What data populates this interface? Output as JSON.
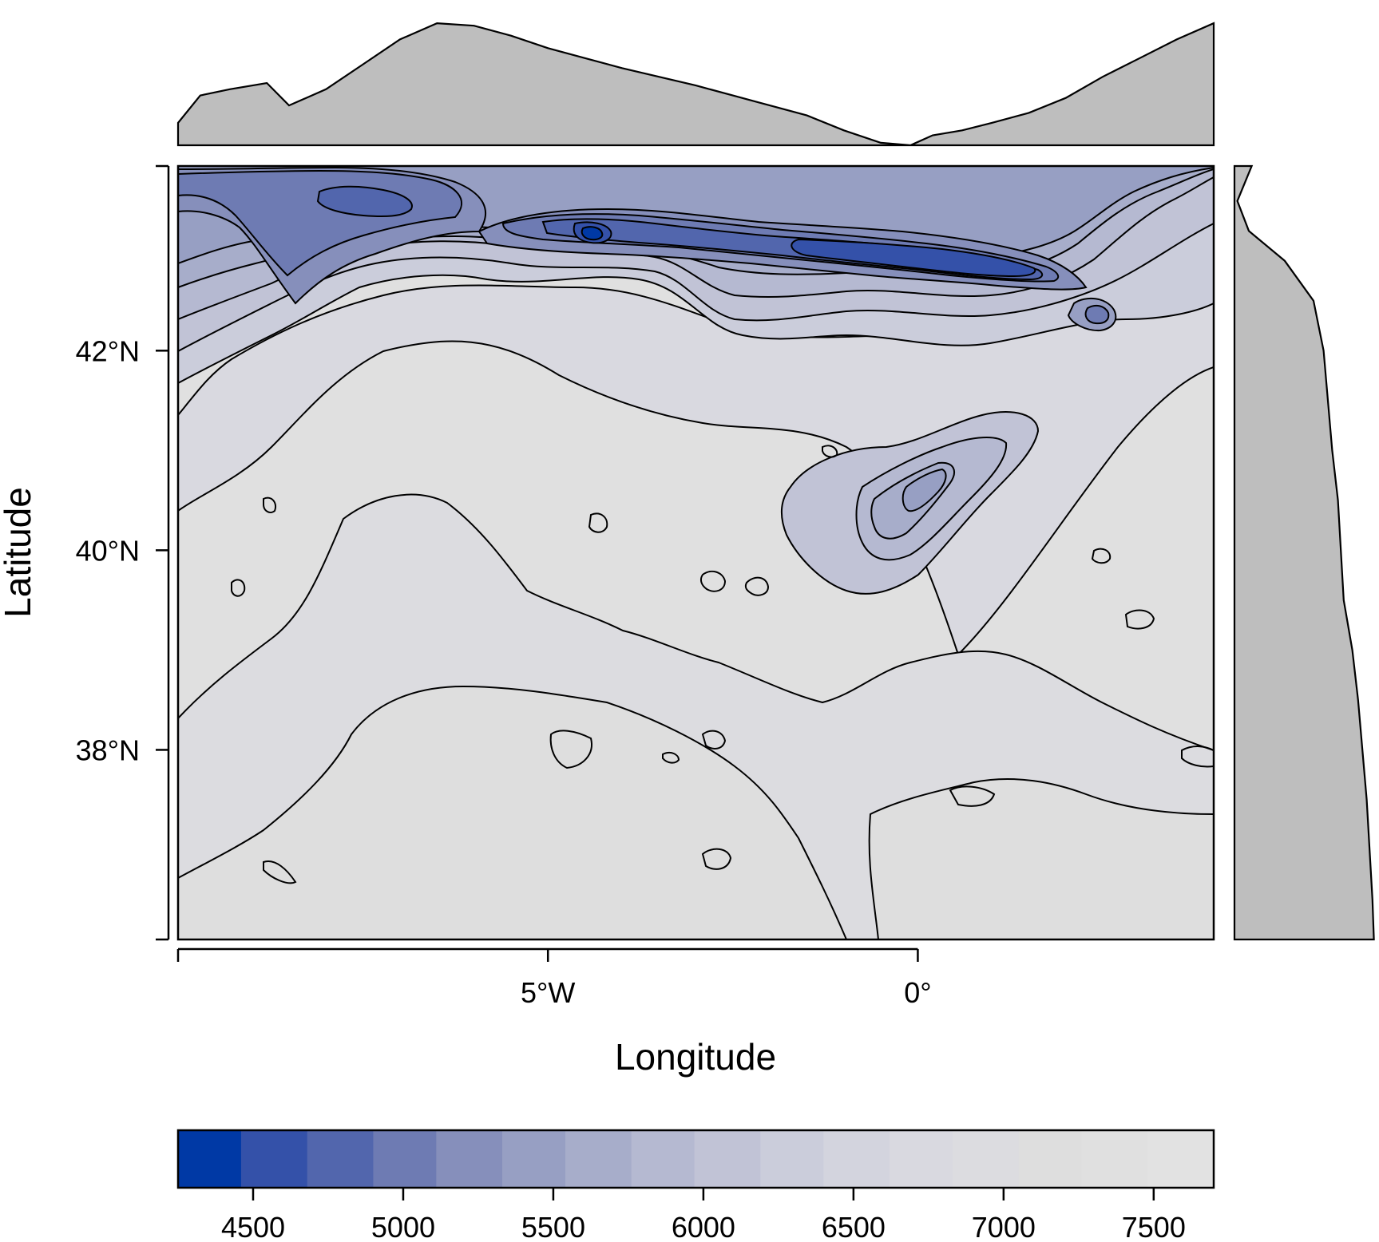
{
  "chart_data": {
    "type": "heatmap",
    "subtype": "filled-contour-map-with-marginal-profiles",
    "xlabel": "Longitude",
    "ylabel": "Latitude",
    "xlim": [
      -10,
      4
    ],
    "ylim": [
      36.1,
      43.85
    ],
    "x_ticks": [
      {
        "value": -10,
        "label": ""
      },
      {
        "value": -5,
        "label": "5°W"
      },
      {
        "value": 0,
        "label": "0°"
      }
    ],
    "y_ticks": [
      {
        "value": 36.1,
        "label": ""
      },
      {
        "value": 38,
        "label": "38°N"
      },
      {
        "value": 40,
        "label": "40°N"
      },
      {
        "value": 42,
        "label": "42°N"
      },
      {
        "value": 43.85,
        "label": ""
      }
    ],
    "colorbar": {
      "range": [
        4250,
        7700
      ],
      "levels": [
        4250,
        4460,
        4680,
        4900,
        5110,
        5330,
        5540,
        5760,
        5970,
        6190,
        6400,
        6620,
        6830,
        7050,
        7260,
        7480,
        7700
      ],
      "colors": [
        "#0039a5",
        "#3451a9",
        "#5266ad",
        "#6e7bb3",
        "#868fbb",
        "#979fc3",
        "#a7adca",
        "#b5b9d1",
        "#c1c3d6",
        "#cbcddb",
        "#d3d4de",
        "#d9d9e0",
        "#dcdce0",
        "#dedede",
        "#e0e0e0",
        "#e2e2e2"
      ],
      "ticks": [
        4500,
        5000,
        5500,
        6000,
        6500,
        7000,
        7500
      ],
      "tick_labels": [
        "4500",
        "5000",
        "5500",
        "6000",
        "6500",
        "7000",
        "7500"
      ]
    },
    "field_values": {
      "description_units": "value",
      "north_band_lat": 43.1,
      "min_value": 4400,
      "max_value": 7600
    },
    "top_profile": {
      "x": [
        -10,
        -9.7,
        -9.3,
        -8.8,
        -8.5,
        -8.0,
        -7.5,
        -7.0,
        -6.5,
        -6.0,
        -5.5,
        -5.0,
        -4.5,
        -4.0,
        -3.5,
        -3.0,
        -2.5,
        -2.0,
        -1.5,
        -1.0,
        -0.5,
        -0.1,
        0.2,
        0.6,
        1.0,
        1.5,
        2.0,
        2.5,
        3.0,
        3.5,
        4.0
      ],
      "y": [
        0.18,
        0.4,
        0.45,
        0.5,
        0.32,
        0.45,
        0.65,
        0.85,
        0.98,
        0.96,
        0.88,
        0.78,
        0.7,
        0.62,
        0.55,
        0.48,
        0.4,
        0.32,
        0.24,
        0.12,
        0.02,
        0.0,
        0.08,
        0.12,
        0.18,
        0.26,
        0.38,
        0.55,
        0.7,
        0.85,
        0.98
      ]
    },
    "right_profile": {
      "lat": [
        43.85,
        43.5,
        43.2,
        42.9,
        42.5,
        42.0,
        41.5,
        41.0,
        40.5,
        40.0,
        39.5,
        39.0,
        38.5,
        38.0,
        37.5,
        37.0,
        36.5,
        36.1
      ],
      "w": [
        0.12,
        0.02,
        0.1,
        0.35,
        0.55,
        0.62,
        0.65,
        0.68,
        0.72,
        0.74,
        0.76,
        0.82,
        0.86,
        0.89,
        0.92,
        0.94,
        0.96,
        0.97
      ]
    }
  }
}
